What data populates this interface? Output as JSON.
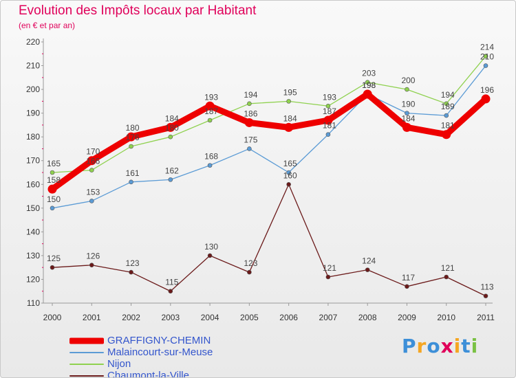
{
  "title": "Evolution des Impôts locaux par Habitant",
  "subtitle": "(en € et par an)",
  "logo": {
    "text": "Proxiti",
    "letters": [
      "P",
      "r",
      "o",
      "x",
      "i",
      "t",
      "i"
    ],
    "colors": [
      "#3d8fd8",
      "#f5a623",
      "#3d8fd8",
      "#e0005a",
      "#f5a623",
      "#3d8fd8",
      "#7ac143"
    ]
  },
  "chart_data": {
    "type": "line",
    "title": "Evolution des Impôts locaux par Habitant",
    "subtitle": "(en € et par an)",
    "xlabel": "",
    "ylabel": "",
    "ylim": [
      110,
      220
    ],
    "yticks": [
      110,
      120,
      130,
      140,
      150,
      160,
      170,
      180,
      190,
      200,
      210,
      220
    ],
    "grid": false,
    "legend": "bottom-left",
    "categories": [
      "2000",
      "2001",
      "2002",
      "2003",
      "2004",
      "2005",
      "2006",
      "2007",
      "2008",
      "2009",
      "2010",
      "2011"
    ],
    "series": [
      {
        "name": "GRAFFIGNY-CHEMIN",
        "color": "#ee0000",
        "values": [
          158,
          170,
          180,
          184,
          193,
          186,
          184,
          187,
          198,
          184,
          181,
          196
        ]
      },
      {
        "name": "Malaincourt-sur-Meuse",
        "color": "#5b9bd5",
        "values": [
          150,
          153,
          161,
          162,
          168,
          175,
          165,
          181,
          198,
          190,
          189,
          210
        ]
      },
      {
        "name": "Nijon",
        "color": "#8fd14f",
        "values": [
          165,
          166,
          176,
          180,
          187,
          194,
          195,
          193,
          203,
          200,
          194,
          214
        ]
      },
      {
        "name": "Chaumont-la-Ville",
        "color": "#6b1a1a",
        "values": [
          125,
          126,
          123,
          115,
          130,
          123,
          160,
          121,
          124,
          117,
          121,
          113
        ]
      }
    ]
  }
}
